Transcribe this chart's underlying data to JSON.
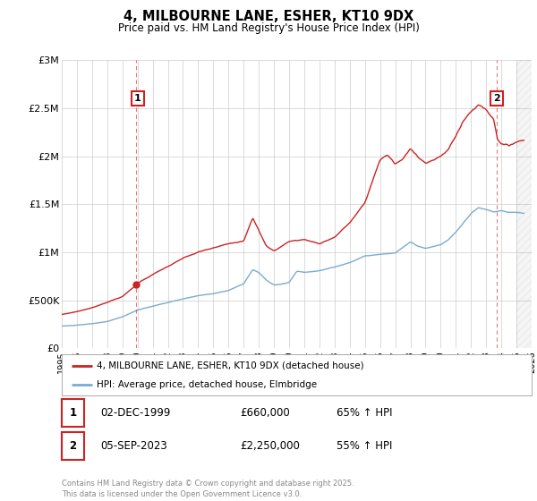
{
  "title": "4, MILBOURNE LANE, ESHER, KT10 9DX",
  "subtitle": "Price paid vs. HM Land Registry's House Price Index (HPI)",
  "xlim": [
    1995.0,
    2026.0
  ],
  "ylim": [
    0,
    3000000
  ],
  "yticks": [
    0,
    500000,
    1000000,
    1500000,
    2000000,
    2500000,
    3000000
  ],
  "ytick_labels": [
    "£0",
    "£500K",
    "£1M",
    "£1.5M",
    "£2M",
    "£2.5M",
    "£3M"
  ],
  "line_color_red": "#cc2222",
  "line_color_blue": "#7aabcf",
  "vline_color": "#cc2222",
  "ann1_x": 2000.0,
  "ann1_y": 2600000,
  "ann1_label": "1",
  "ann2_x": 2023.67,
  "ann2_y": 2600000,
  "ann2_label": "2",
  "sale1_x": 1999.92,
  "sale1_y": 660000,
  "sale2_x": 2023.67,
  "sale2_y": 2250000,
  "legend_line1": "4, MILBOURNE LANE, ESHER, KT10 9DX (detached house)",
  "legend_line2": "HPI: Average price, detached house, Elmbridge",
  "table_rows": [
    {
      "num": "1",
      "date": "02-DEC-1999",
      "price": "£660,000",
      "change": "65% ↑ HPI"
    },
    {
      "num": "2",
      "date": "05-SEP-2023",
      "price": "£2,250,000",
      "change": "55% ↑ HPI"
    }
  ],
  "footer": "Contains HM Land Registry data © Crown copyright and database right 2025.\nThis data is licensed under the Open Government Licence v3.0.",
  "background_color": "#ffffff",
  "grid_color": "#cccccc",
  "hatch_start": 2025.0
}
